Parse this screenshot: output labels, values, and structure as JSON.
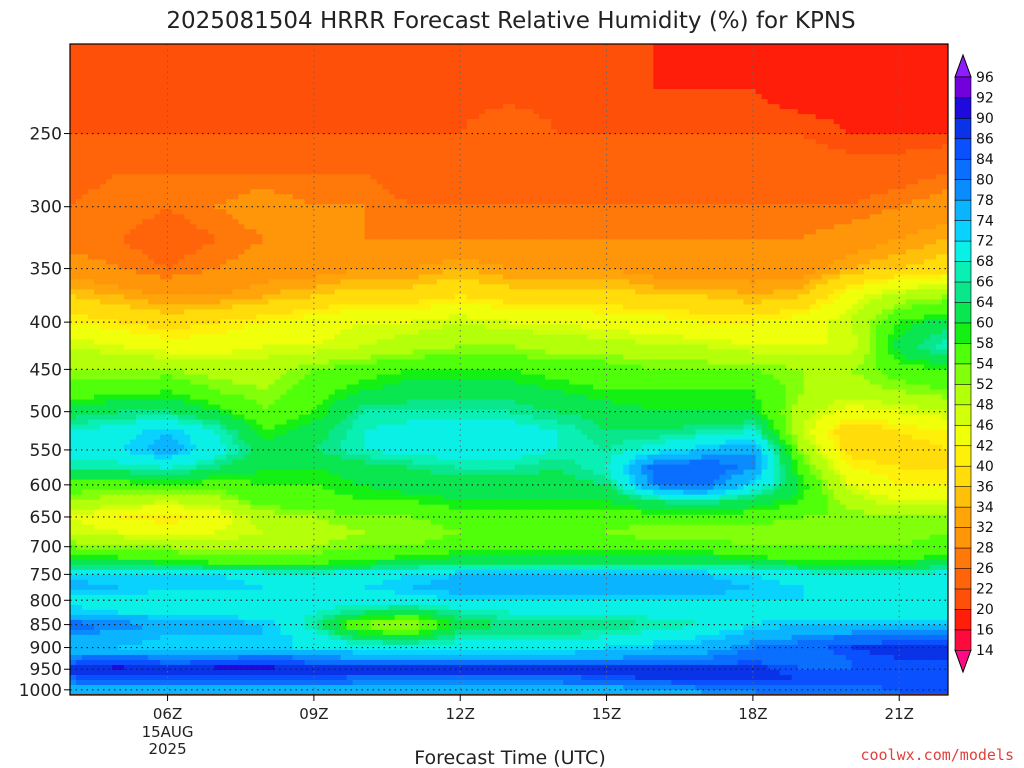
{
  "chart_data": {
    "type": "heatmap",
    "title": "2025081504 HRRR Forecast Relative Humidity (%) for KPNS",
    "xlabel": "Forecast Time (UTC)",
    "ylabel": "",
    "x_ticks": [
      {
        "hour": 6,
        "label": "06Z",
        "date_lines": [
          "15AUG",
          "2025"
        ]
      },
      {
        "hour": 9,
        "label": "09Z"
      },
      {
        "hour": 12,
        "label": "12Z"
      },
      {
        "hour": 15,
        "label": "15Z"
      },
      {
        "hour": 18,
        "label": "18Z"
      },
      {
        "hour": 21,
        "label": "21Z"
      }
    ],
    "xlim": [
      4,
      22
    ],
    "y_ticks": [
      250,
      300,
      350,
      400,
      450,
      500,
      550,
      600,
      650,
      700,
      750,
      800,
      850,
      900,
      950,
      1000
    ],
    "ylim_hpa": [
      200,
      1013
    ],
    "ground_level_hpa": 1013,
    "y_scale": "log-pressure",
    "grid": true,
    "hours": [
      4,
      5,
      6,
      7,
      8,
      9,
      10,
      11,
      12,
      13,
      14,
      15,
      16,
      17,
      18,
      19,
      20,
      21,
      22
    ],
    "levels_hpa": [
      1000,
      975,
      950,
      925,
      900,
      875,
      850,
      825,
      800,
      775,
      750,
      725,
      700,
      675,
      650,
      625,
      600,
      575,
      550,
      525,
      500,
      475,
      450,
      425,
      400,
      375,
      350,
      325,
      300,
      275,
      250,
      225,
      200
    ],
    "rh_profiles": [
      [
        74,
        82,
        90,
        80,
        76,
        78,
        82,
        74,
        70,
        76,
        72,
        60,
        54,
        48,
        46,
        52,
        56,
        66,
        70,
        68,
        62,
        56,
        52,
        48,
        42,
        36,
        30,
        26,
        26,
        24,
        22,
        20,
        22
      ],
      [
        76,
        84,
        92,
        82,
        74,
        76,
        80,
        72,
        70,
        74,
        72,
        60,
        52,
        46,
        42,
        50,
        56,
        66,
        72,
        70,
        64,
        56,
        52,
        46,
        40,
        34,
        28,
        26,
        28,
        26,
        22,
        20,
        22
      ],
      [
        76,
        84,
        90,
        80,
        72,
        74,
        78,
        70,
        68,
        74,
        72,
        58,
        52,
        44,
        40,
        48,
        58,
        68,
        76,
        74,
        64,
        58,
        52,
        44,
        38,
        32,
        26,
        24,
        26,
        26,
        22,
        20,
        22
      ],
      [
        74,
        84,
        92,
        80,
        72,
        74,
        76,
        70,
        68,
        74,
        72,
        56,
        50,
        46,
        44,
        50,
        56,
        64,
        70,
        68,
        60,
        54,
        50,
        44,
        40,
        32,
        28,
        26,
        28,
        26,
        22,
        20,
        22
      ],
      [
        74,
        84,
        92,
        82,
        72,
        74,
        74,
        70,
        68,
        72,
        70,
        56,
        50,
        48,
        50,
        56,
        58,
        60,
        62,
        58,
        54,
        52,
        50,
        46,
        42,
        34,
        30,
        28,
        30,
        26,
        22,
        20,
        20
      ],
      [
        74,
        84,
        90,
        80,
        72,
        70,
        66,
        68,
        70,
        72,
        70,
        56,
        52,
        50,
        52,
        56,
        58,
        60,
        64,
        62,
        58,
        56,
        54,
        46,
        44,
        36,
        30,
        28,
        28,
        26,
        22,
        20,
        20
      ],
      [
        74,
        82,
        88,
        78,
        70,
        62,
        52,
        64,
        70,
        72,
        70,
        58,
        54,
        52,
        54,
        58,
        60,
        62,
        68,
        68,
        66,
        60,
        56,
        48,
        46,
        38,
        32,
        28,
        28,
        26,
        22,
        20,
        20
      ],
      [
        74,
        82,
        88,
        78,
        70,
        60,
        50,
        62,
        70,
        74,
        72,
        60,
        54,
        52,
        54,
        58,
        62,
        64,
        70,
        70,
        66,
        62,
        58,
        50,
        46,
        38,
        32,
        28,
        26,
        24,
        22,
        20,
        20
      ],
      [
        74,
        82,
        88,
        78,
        70,
        66,
        62,
        66,
        72,
        76,
        74,
        62,
        56,
        54,
        56,
        60,
        62,
        66,
        70,
        70,
        66,
        62,
        58,
        52,
        48,
        40,
        34,
        28,
        26,
        22,
        22,
        20,
        20
      ],
      [
        74,
        82,
        88,
        78,
        70,
        66,
        64,
        68,
        72,
        76,
        74,
        62,
        56,
        54,
        56,
        60,
        62,
        66,
        70,
        70,
        66,
        62,
        58,
        52,
        46,
        38,
        32,
        28,
        26,
        24,
        26,
        20,
        20
      ],
      [
        74,
        82,
        88,
        78,
        70,
        66,
        64,
        68,
        72,
        76,
        74,
        62,
        56,
        54,
        56,
        60,
        62,
        64,
        68,
        68,
        64,
        60,
        56,
        50,
        46,
        38,
        32,
        28,
        26,
        24,
        22,
        20,
        20
      ],
      [
        76,
        84,
        88,
        78,
        72,
        68,
        64,
        68,
        72,
        76,
        74,
        62,
        56,
        54,
        56,
        60,
        64,
        68,
        66,
        64,
        62,
        58,
        56,
        50,
        44,
        38,
        32,
        28,
        26,
        24,
        22,
        20,
        20
      ],
      [
        76,
        86,
        90,
        80,
        74,
        70,
        66,
        70,
        72,
        76,
        74,
        62,
        56,
        52,
        56,
        64,
        80,
        82,
        70,
        64,
        60,
        58,
        54,
        48,
        44,
        36,
        30,
        28,
        26,
        24,
        22,
        20,
        20
      ],
      [
        78,
        88,
        90,
        80,
        76,
        72,
        68,
        70,
        72,
        76,
        74,
        62,
        56,
        52,
        56,
        66,
        82,
        84,
        74,
        66,
        60,
        58,
        54,
        48,
        42,
        36,
        30,
        28,
        26,
        24,
        22,
        20,
        18
      ],
      [
        80,
        88,
        88,
        82,
        80,
        76,
        72,
        70,
        72,
        74,
        72,
        60,
        54,
        52,
        56,
        62,
        72,
        78,
        78,
        68,
        60,
        58,
        54,
        46,
        42,
        34,
        30,
        28,
        26,
        24,
        22,
        20,
        18
      ],
      [
        80,
        86,
        84,
        82,
        82,
        78,
        74,
        70,
        72,
        72,
        70,
        58,
        54,
        52,
        54,
        58,
        60,
        56,
        52,
        48,
        50,
        52,
        52,
        46,
        44,
        36,
        30,
        28,
        26,
        24,
        22,
        18,
        16
      ],
      [
        82,
        86,
        84,
        84,
        86,
        80,
        74,
        70,
        70,
        70,
        68,
        58,
        54,
        52,
        54,
        50,
        46,
        42,
        38,
        36,
        44,
        50,
        52,
        46,
        48,
        44,
        34,
        30,
        26,
        24,
        20,
        18,
        16
      ],
      [
        84,
        86,
        84,
        86,
        88,
        80,
        74,
        70,
        70,
        70,
        68,
        58,
        54,
        52,
        52,
        46,
        42,
        40,
        38,
        40,
        46,
        52,
        56,
        62,
        58,
        50,
        36,
        32,
        28,
        24,
        20,
        16,
        16
      ],
      [
        84,
        86,
        84,
        86,
        88,
        80,
        74,
        70,
        70,
        72,
        70,
        60,
        56,
        54,
        54,
        46,
        42,
        40,
        40,
        42,
        48,
        54,
        58,
        68,
        62,
        52,
        38,
        34,
        30,
        26,
        20,
        18,
        16
      ]
    ],
    "colorbar": {
      "levels": [
        14,
        16,
        20,
        22,
        26,
        28,
        32,
        34,
        36,
        40,
        42,
        46,
        48,
        52,
        54,
        58,
        60,
        64,
        66,
        68,
        72,
        74,
        78,
        80,
        84,
        86,
        90,
        92,
        96
      ],
      "colors": [
        "#ff0a82",
        "#ff0a3c",
        "#ff1e0a",
        "#ff500a",
        "#ff640a",
        "#ff780a",
        "#ff960a",
        "#ffa50a",
        "#ffc00a",
        "#ffdc0a",
        "#fff00a",
        "#f0ff0a",
        "#d2ff0a",
        "#b4ff0a",
        "#82ff0a",
        "#50ff0a",
        "#14f014",
        "#0ae650",
        "#0ae68c",
        "#0af0b4",
        "#0af0e6",
        "#0ad2ff",
        "#0ab4ff",
        "#0a8cff",
        "#0a6eff",
        "#0a50ff",
        "#0a32e6",
        "#1e0adc",
        "#7300dc",
        "#8c1eff"
      ]
    },
    "ground_color": "#b0522a",
    "credit": "coolwx.com/models"
  }
}
